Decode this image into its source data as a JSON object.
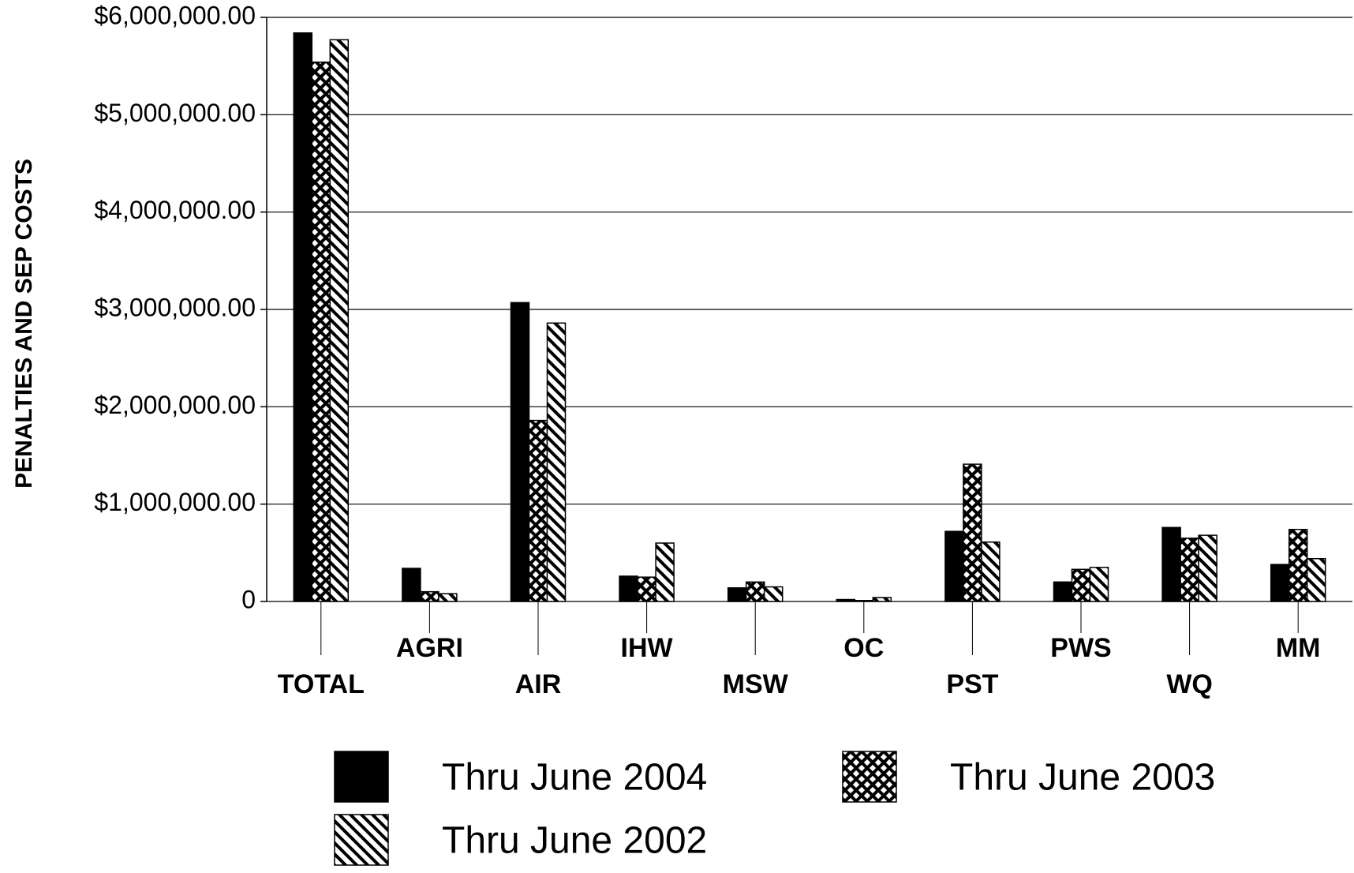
{
  "chart_data": {
    "type": "bar",
    "y_label": "PENALTIES AND SEP COSTS",
    "categories": [
      "TOTAL",
      "AGRI",
      "AIR",
      "IHW",
      "MSW",
      "OC",
      "PST",
      "PWS",
      "WQ",
      "MM"
    ],
    "series": [
      {
        "name": "Thru June 2004",
        "color": "#000000",
        "pattern": "solid",
        "values": [
          5840000,
          340000,
          3070000,
          260000,
          140000,
          20000,
          720000,
          200000,
          760000,
          380000
        ]
      },
      {
        "name": "Thru June 2003",
        "color": "#000000",
        "pattern": "crosshatch",
        "values": [
          5540000,
          100000,
          1860000,
          250000,
          200000,
          10000,
          1410000,
          330000,
          650000,
          740000
        ]
      },
      {
        "name": "Thru June 2002",
        "color": "#000000",
        "pattern": "diagonal",
        "values": [
          5770000,
          80000,
          2860000,
          600000,
          150000,
          40000,
          610000,
          350000,
          680000,
          440000
        ]
      }
    ],
    "ylim": [
      0,
      6000000
    ],
    "yticks": [
      0,
      {
        "value": 1000000,
        "label": "$1,000,000.00"
      },
      {
        "value": 2000000,
        "label": "$2,000,000.00"
      },
      {
        "value": 3000000,
        "label": "$3,000,000.00"
      },
      {
        "value": 4000000,
        "label": "$4,000,000.00"
      },
      {
        "value": 5000000,
        "label": "$5,000,000.00"
      },
      {
        "value": 6000000,
        "label": "$6,000,000.00"
      }
    ],
    "grid": true,
    "legend": "bottom"
  }
}
